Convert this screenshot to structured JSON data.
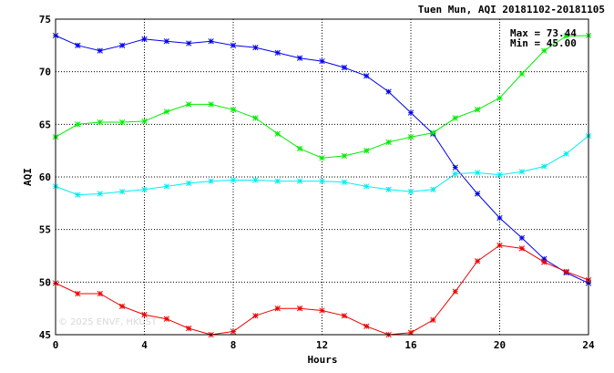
{
  "chart_data": {
    "type": "line",
    "title": "Tuen Mun, AQI 20181102-20181105",
    "xlabel": "Hours",
    "ylabel": "AQI",
    "xlim": [
      0,
      24
    ],
    "ylim": [
      45,
      75
    ],
    "xticks": [
      0,
      4,
      8,
      12,
      16,
      20,
      24
    ],
    "yticks": [
      45,
      50,
      55,
      60,
      65,
      70,
      75
    ],
    "grid": true,
    "annotations": [
      "Max = 73.44",
      "Min = 45.00"
    ],
    "watermark": "© 2025 ENVF, HKUST",
    "x": [
      0,
      1,
      2,
      3,
      4,
      5,
      6,
      7,
      8,
      9,
      10,
      11,
      12,
      13,
      14,
      15,
      16,
      17,
      18,
      19,
      20,
      21,
      22,
      23,
      24
    ],
    "series": [
      {
        "color": "#0000ee",
        "values": [
          73.44,
          72.5,
          72.0,
          72.5,
          73.1,
          72.9,
          72.7,
          72.9,
          72.5,
          72.3,
          71.8,
          71.3,
          71.0,
          70.4,
          69.6,
          68.1,
          66.1,
          64.1,
          60.9,
          58.4,
          56.1,
          54.2,
          52.2,
          50.9,
          49.9
        ]
      },
      {
        "color": "#00ee00",
        "values": [
          63.8,
          65.0,
          65.2,
          65.2,
          65.3,
          66.2,
          66.9,
          66.9,
          66.4,
          65.6,
          64.1,
          62.7,
          61.8,
          62.0,
          62.5,
          63.3,
          63.8,
          64.2,
          65.6,
          66.4,
          67.5,
          69.8,
          72.0,
          73.4,
          73.44
        ]
      },
      {
        "color": "#00eeee",
        "values": [
          59.1,
          58.3,
          58.4,
          58.6,
          58.8,
          59.1,
          59.4,
          59.6,
          59.7,
          59.7,
          59.6,
          59.6,
          59.6,
          59.5,
          59.1,
          58.8,
          58.6,
          58.8,
          60.3,
          60.4,
          60.2,
          60.5,
          61.0,
          62.2,
          63.9
        ]
      },
      {
        "color": "#ee0000",
        "values": [
          49.9,
          48.9,
          48.9,
          47.7,
          46.9,
          46.5,
          45.6,
          45.0,
          45.3,
          46.8,
          47.5,
          47.5,
          47.3,
          46.8,
          45.8,
          45.0,
          45.2,
          46.4,
          49.1,
          52.0,
          53.5,
          53.2,
          51.9,
          51.0,
          50.2
        ]
      }
    ]
  }
}
